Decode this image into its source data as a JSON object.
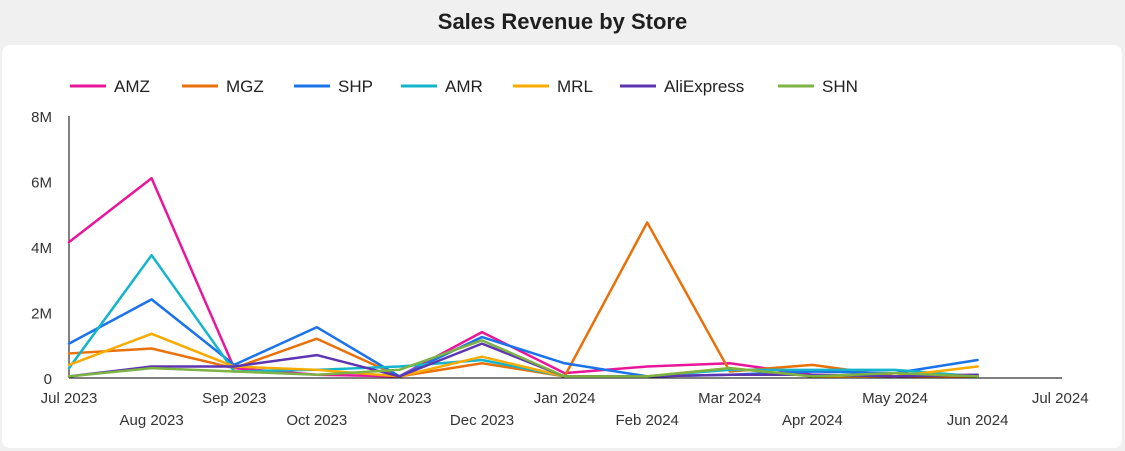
{
  "title": "Sales Revenue by Store",
  "chart_data": {
    "type": "line",
    "title": "Sales Revenue by Store",
    "xlabel": "",
    "ylabel": "",
    "ylim": [
      0,
      8000000
    ],
    "y_ticks": [
      {
        "value": 0,
        "label": "0"
      },
      {
        "value": 2000000,
        "label": "2M"
      },
      {
        "value": 4000000,
        "label": "4M"
      },
      {
        "value": 6000000,
        "label": "6M"
      },
      {
        "value": 8000000,
        "label": "8M"
      }
    ],
    "x_ticks": [
      {
        "index": 0,
        "label": "Jul 2023"
      },
      {
        "index": 1,
        "label": "Aug 2023"
      },
      {
        "index": 2,
        "label": "Sep 2023"
      },
      {
        "index": 3,
        "label": "Oct 2023"
      },
      {
        "index": 4,
        "label": "Nov 2023"
      },
      {
        "index": 5,
        "label": "Dec 2023"
      },
      {
        "index": 6,
        "label": "Jan 2024"
      },
      {
        "index": 7,
        "label": "Feb 2024"
      },
      {
        "index": 8,
        "label": "Mar 2024"
      },
      {
        "index": 9,
        "label": "Apr 2024"
      },
      {
        "index": 10,
        "label": "May 2024"
      },
      {
        "index": 11,
        "label": "Jun 2024"
      },
      {
        "index": 12,
        "label": "Jul 2024"
      }
    ],
    "categories": [
      "Jul 2023",
      "Aug 2023",
      "Sep 2023",
      "Oct 2023",
      "Nov 2023",
      "Dec 2023",
      "Jan 2024",
      "Feb 2024",
      "Mar 2024",
      "Apr 2024",
      "May 2024",
      "Jun 2024"
    ],
    "legend_position": "top-left",
    "grid": false,
    "series": [
      {
        "name": "AMZ",
        "color": "#e8179a",
        "values": [
          4150000,
          6100000,
          300000,
          100000,
          50000,
          1400000,
          150000,
          350000,
          450000,
          100000,
          50000,
          100000
        ]
      },
      {
        "name": "MGZ",
        "color": "#e8710a",
        "values": [
          750000,
          900000,
          300000,
          1200000,
          50000,
          450000,
          50000,
          4750000,
          200000,
          400000,
          50000,
          50000
        ]
      },
      {
        "name": "SHP",
        "color": "#1a73e8",
        "values": [
          1050000,
          2400000,
          400000,
          1550000,
          50000,
          1250000,
          450000,
          50000,
          100000,
          200000,
          150000,
          550000
        ]
      },
      {
        "name": "AMR",
        "color": "#12b5cb",
        "values": [
          300000,
          3750000,
          200000,
          250000,
          350000,
          550000,
          50000,
          50000,
          250000,
          250000,
          250000,
          50000
        ]
      },
      {
        "name": "MRL",
        "color": "#f9ab00",
        "values": [
          400000,
          1350000,
          350000,
          250000,
          50000,
          650000,
          50000,
          50000,
          300000,
          50000,
          50000,
          350000
        ]
      },
      {
        "name": "AliExpress",
        "color": "#5e35b1",
        "values": [
          50000,
          350000,
          350000,
          700000,
          50000,
          1050000,
          50000,
          50000,
          100000,
          100000,
          50000,
          100000
        ]
      },
      {
        "name": "SHN",
        "color": "#7cb342",
        "values": [
          50000,
          300000,
          200000,
          100000,
          250000,
          1150000,
          50000,
          50000,
          300000,
          50000,
          150000,
          50000
        ]
      }
    ]
  }
}
